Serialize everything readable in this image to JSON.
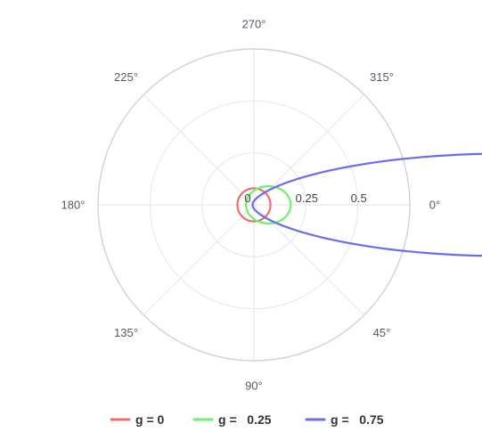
{
  "chart_data": {
    "type": "polar-line",
    "angle_axis": {
      "unit": "degrees",
      "direction": "clockwise",
      "zero_at": "right",
      "ticks": [
        0,
        45,
        90,
        135,
        180,
        225,
        270,
        315
      ],
      "tick_labels": [
        "0°",
        "45°",
        "90°",
        "135°",
        "180°",
        "225°",
        "270°",
        "315°"
      ]
    },
    "radial_axis": {
      "range": [
        0,
        0.75
      ],
      "ticks": [
        0,
        0.25,
        0.5
      ],
      "tick_labels": [
        "0",
        "0.25",
        "0.5"
      ],
      "grid_rings": [
        0.25,
        0.5,
        0.75
      ]
    },
    "grid": true,
    "legend_position": "bottom",
    "series": [
      {
        "name": "g = 0",
        "g": 0,
        "color": "#f26b6b"
      },
      {
        "name": "g =   0.25",
        "g": 0.25,
        "color": "#6cf26b"
      },
      {
        "name": "g =   0.75",
        "g": 0.75,
        "color": "#6b6bf2"
      }
    ]
  }
}
